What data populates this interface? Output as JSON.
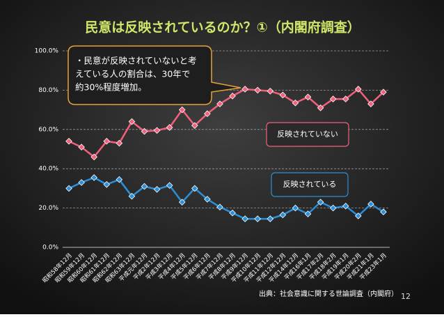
{
  "chart_data": {
    "type": "line",
    "title": "民意は反映されているのか？①（内閣府調査）",
    "categories": [
      "昭和58年12月",
      "昭和59年12月",
      "昭和60年12月",
      "昭和61年12月",
      "昭和62年12月",
      "昭和63年12月",
      "平成元年12月",
      "平成2年12月",
      "平成3年12月",
      "平成4年12月",
      "平成5年12月",
      "平成6年12月",
      "平成7年12月",
      "平成8年12月",
      "平成9年12月",
      "平成10年12月",
      "平成11年12月",
      "平成12年12月",
      "平成14年12月",
      "平成16年1月",
      "平成17年2月",
      "平成18年2月",
      "平成19年1月",
      "平成20年2月",
      "平成21年1月",
      "平成23年1月"
    ],
    "series": [
      {
        "name": "反映されていない",
        "color": "#f2607c",
        "values": [
          54,
          51,
          46,
          54,
          53,
          64,
          59,
          59.5,
          61,
          70,
          62,
          68,
          73,
          77,
          80.5,
          80,
          79.5,
          77.5,
          73.5,
          76.5,
          71,
          75.5,
          75.5,
          80.5,
          73,
          79
        ]
      },
      {
        "name": "反映されている",
        "color": "#2b8fd9",
        "values": [
          30,
          33,
          35.5,
          32,
          34.5,
          26,
          31,
          29.5,
          31.5,
          23,
          30,
          24.5,
          20.5,
          17.5,
          14.5,
          14.5,
          14.5,
          16.5,
          20,
          17,
          23,
          20,
          21,
          16,
          22,
          18
        ]
      }
    ],
    "ylim": [
      0,
      100
    ],
    "yticks": [
      {
        "value": 0,
        "label": "0.0%"
      },
      {
        "value": 20,
        "label": "20.0%"
      },
      {
        "value": 40,
        "label": "40.0%"
      },
      {
        "value": 60,
        "label": "60.0%"
      },
      {
        "value": 80,
        "label": "80.0%"
      },
      {
        "value": 100,
        "label": "100.0%"
      }
    ],
    "grid": true,
    "annotation": [
      "・民意が反映されていないと考",
      "えている人の割合は、30年で",
      "約30%程度増加。"
    ],
    "source": "出典：社会意識に関する世論調査（内閣府）",
    "page_number": "12"
  }
}
